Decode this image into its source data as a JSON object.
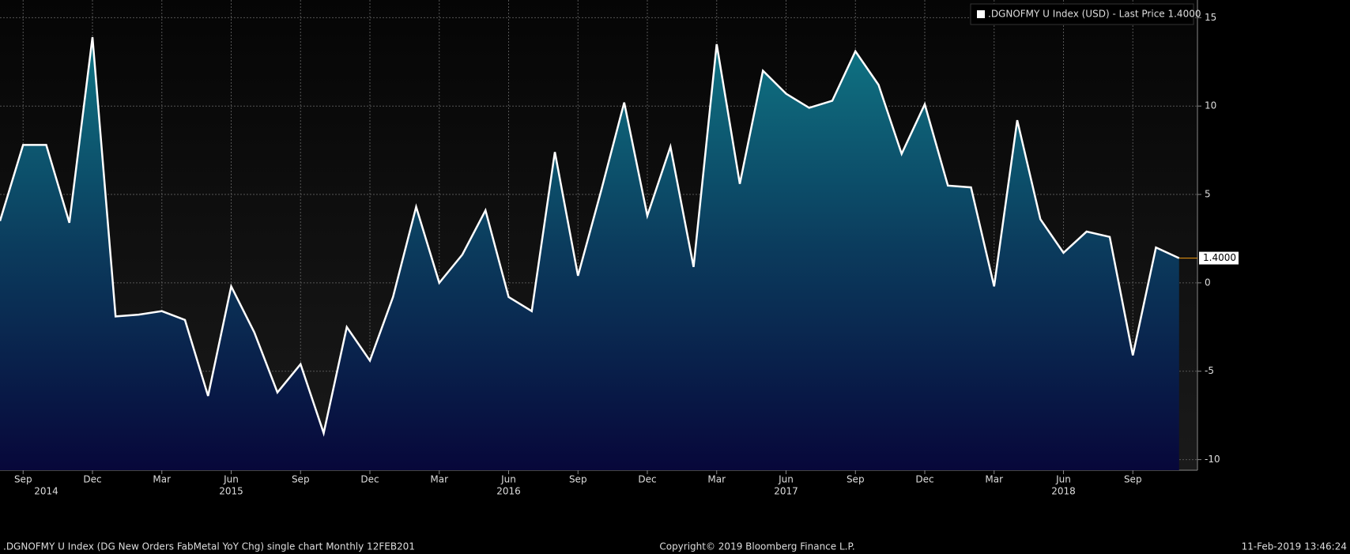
{
  "chart_data": {
    "type": "area",
    "legend": ".DGNOFMY U Index (USD)  - Last Price 1.4000",
    "categories": [
      null,
      "Sep",
      null,
      null,
      "Dec",
      null,
      null,
      "Mar",
      null,
      null,
      "Jun",
      null,
      null,
      "Sep",
      null,
      null,
      "Dec",
      null,
      null,
      "Mar",
      null,
      null,
      "Jun",
      null,
      null,
      "Sep",
      null,
      null,
      "Dec",
      null,
      null,
      "Mar",
      null,
      null,
      "Jun",
      null,
      null,
      "Sep",
      null,
      null,
      "Dec",
      null,
      null,
      "Mar",
      null,
      null,
      "Jun",
      null,
      null,
      "Sep",
      null,
      null
    ],
    "year_labels": [
      null,
      null,
      "2014",
      null,
      null,
      null,
      null,
      null,
      null,
      null,
      "2015",
      null,
      null,
      null,
      null,
      null,
      null,
      null,
      null,
      null,
      null,
      null,
      "2016",
      null,
      null,
      null,
      null,
      null,
      null,
      null,
      null,
      null,
      null,
      null,
      "2017",
      null,
      null,
      null,
      null,
      null,
      null,
      null,
      null,
      null,
      null,
      null,
      "2018",
      null,
      null,
      null,
      null,
      null
    ],
    "series": [
      {
        "name": ".DGNOFMY U Index (USD)",
        "color": "#ffffff",
        "values": [
          3.5,
          7.8,
          7.8,
          3.4,
          13.9,
          -1.9,
          -1.8,
          -1.6,
          -2.1,
          -6.4,
          -0.2,
          -2.8,
          -6.2,
          -4.6,
          -8.5,
          -2.5,
          -4.4,
          -0.8,
          4.3,
          0,
          1.6,
          4.1,
          -0.8,
          -1.6,
          7.4,
          0.4,
          5.2,
          10.2,
          3.8,
          7.7,
          0.9,
          13.5,
          5.6,
          12.0,
          10.7,
          9.9,
          10.3,
          13.1,
          11.2,
          7.3,
          10.1,
          5.5,
          5.4,
          -0.2,
          9.2,
          3.6,
          1.7,
          2.9,
          2.6,
          -4.1,
          2.0,
          1.4
        ]
      }
    ],
    "last_price": {
      "value": 1.4,
      "label": "1.4000"
    },
    "ylim": [
      -10.6,
      16
    ],
    "yticks": [
      -10,
      -5,
      0,
      5,
      10,
      15
    ],
    "grid": true,
    "footer_left": ".DGNOFMY U Index (DG New Orders FabMetal YoY Chg) single chart  Monthly 12FEB201",
    "footer_center": "Copyright© 2019 Bloomberg Finance L.P.",
    "footer_right": "11-Feb-2019 13:46:24"
  }
}
